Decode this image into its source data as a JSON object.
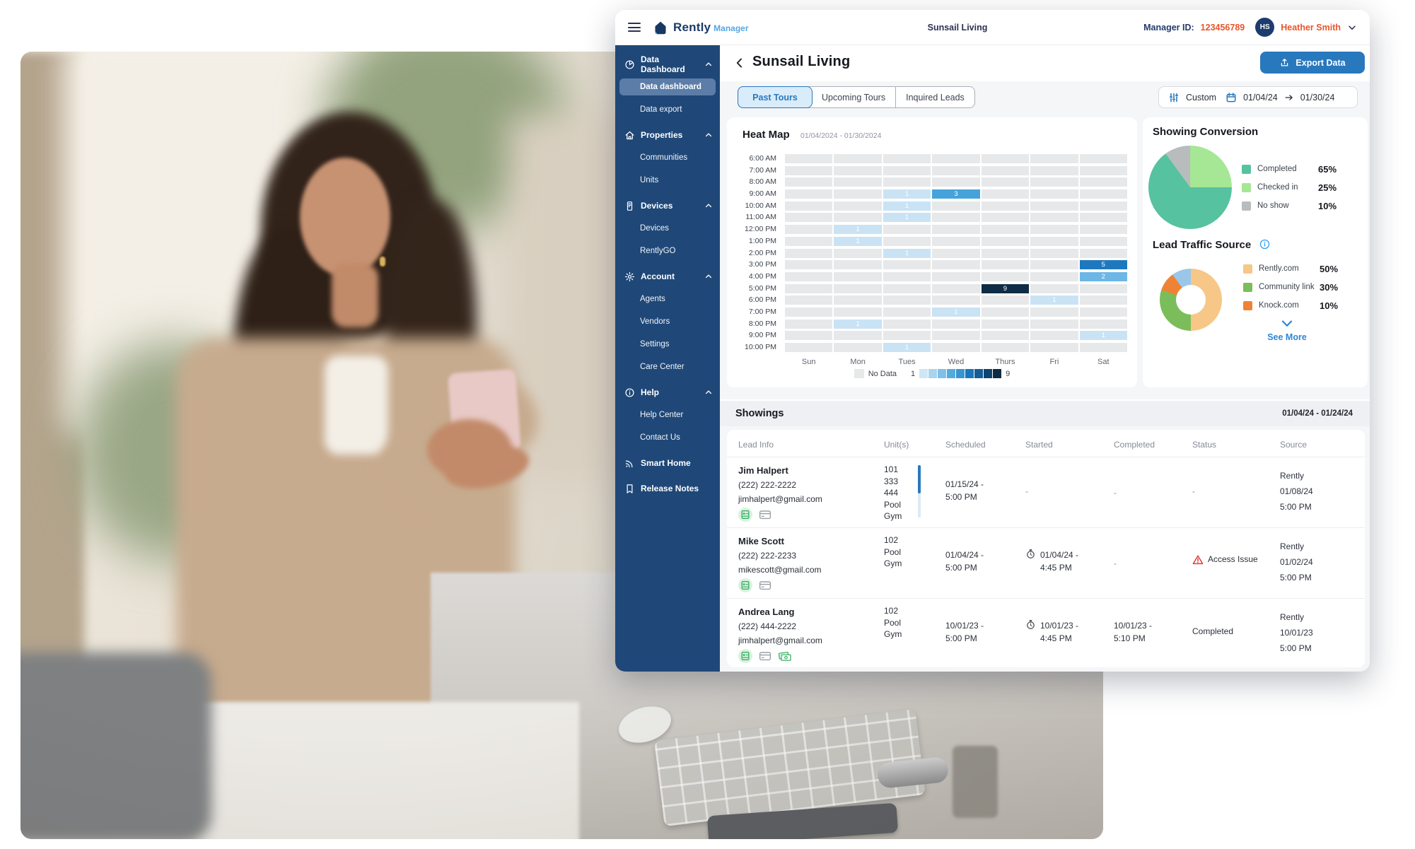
{
  "header": {
    "app_name": "Rently",
    "app_suffix": "Manager",
    "center_title": "Sunsail Living",
    "manager_id_label": "Manager ID:",
    "manager_id": "123456789",
    "avatar_initials": "HS",
    "user_name": "Heather Smith"
  },
  "sidebar": {
    "sections": [
      {
        "label": "Data Dashboard",
        "icon": "pie-chart-icon",
        "expanded": true,
        "children": [
          {
            "label": "Data dashboard",
            "active": true
          },
          {
            "label": "Data export",
            "active": false
          }
        ]
      },
      {
        "label": "Properties",
        "icon": "home-icon",
        "expanded": true,
        "children": [
          {
            "label": "Communities",
            "active": false
          },
          {
            "label": "Units",
            "active": false
          }
        ]
      },
      {
        "label": "Devices",
        "icon": "device-icon",
        "expanded": true,
        "children": [
          {
            "label": "Devices",
            "active": false
          },
          {
            "label": "RentlyGO",
            "active": false
          }
        ]
      },
      {
        "label": "Account",
        "icon": "gear-icon",
        "expanded": true,
        "children": [
          {
            "label": "Agents",
            "active": false
          },
          {
            "label": "Vendors",
            "active": false
          },
          {
            "label": "Settings",
            "active": false
          },
          {
            "label": "Care Center",
            "active": false
          }
        ]
      },
      {
        "label": "Help",
        "icon": "info-icon",
        "expanded": true,
        "children": [
          {
            "label": "Help Center",
            "active": false
          },
          {
            "label": "Contact Us",
            "active": false
          }
        ]
      },
      {
        "label": "Smart Home",
        "icon": "smart-home-icon",
        "expanded": false,
        "children": []
      },
      {
        "label": "Release Notes",
        "icon": "release-notes-icon",
        "expanded": false,
        "children": []
      }
    ]
  },
  "main": {
    "page_title": "Sunsail Living",
    "export_label": "Export Data",
    "tabs": [
      "Past Tours",
      "Upcoming Tours",
      "Inquired Leads"
    ],
    "active_tab": 0,
    "filter": {
      "mode_label": "Custom",
      "start": "01/04/24",
      "end": "01/30/24"
    }
  },
  "chart_data": [
    {
      "type": "heatmap",
      "title": "Heat Map",
      "date_range": "01/04/2024 - 01/30/2024",
      "times": [
        "6:00 AM",
        "7:00 AM",
        "8:00 AM",
        "9:00 AM",
        "10:00 AM",
        "11:00 AM",
        "12:00 PM",
        "1:00 PM",
        "2:00 PM",
        "3:00 PM",
        "4:00 PM",
        "5:00 PM",
        "6:00 PM",
        "7:00 PM",
        "8:00 PM",
        "9:00 PM",
        "10:00 PM"
      ],
      "days": [
        "Sun",
        "Mon",
        "Tues",
        "Wed",
        "Thurs",
        "Fri",
        "Sat"
      ],
      "cells": [
        {
          "time": "9:00 AM",
          "day": "Tues",
          "value": 1
        },
        {
          "time": "9:00 AM",
          "day": "Wed",
          "value": 3
        },
        {
          "time": "10:00 AM",
          "day": "Tues",
          "value": 1
        },
        {
          "time": "11:00 AM",
          "day": "Tues",
          "value": 1
        },
        {
          "time": "12:00 PM",
          "day": "Mon",
          "value": 1
        },
        {
          "time": "1:00 PM",
          "day": "Mon",
          "value": 1
        },
        {
          "time": "2:00 PM",
          "day": "Tues",
          "value": 1
        },
        {
          "time": "3:00 PM",
          "day": "Sat",
          "value": 5
        },
        {
          "time": "4:00 PM",
          "day": "Sat",
          "value": 2
        },
        {
          "time": "5:00 PM",
          "day": "Thurs",
          "value": 9
        },
        {
          "time": "6:00 PM",
          "day": "Fri",
          "value": 1
        },
        {
          "time": "7:00 PM",
          "day": "Wed",
          "value": 1
        },
        {
          "time": "8:00 PM",
          "day": "Mon",
          "value": 1
        },
        {
          "time": "9:00 PM",
          "day": "Sat",
          "value": 1
        },
        {
          "time": "10:00 PM",
          "day": "Tues",
          "value": 1
        }
      ],
      "value_colors": {
        "1": "#c9e3f5",
        "2": "#6db7e6",
        "3": "#46a2db",
        "5": "#1e78bd",
        "9": "#0e2c45"
      },
      "no_data_color": "#e7e8ea",
      "legend": {
        "no_data_label": "No Data",
        "min": "1",
        "max": "9",
        "scale": [
          "#cfe6f6",
          "#a9d4ee",
          "#7fc0e8",
          "#55aadd",
          "#3795d1",
          "#1b76bc",
          "#155d98",
          "#0f4471",
          "#0e2c45"
        ]
      }
    },
    {
      "type": "pie",
      "title": "Showing Conversion",
      "start_angle": 90,
      "draw_order": [
        0,
        2,
        1
      ],
      "slices": [
        {
          "label": "Completed",
          "pct": "65%",
          "value": 65,
          "color": "#57c2a0"
        },
        {
          "label": "Checked in",
          "pct": "25%",
          "value": 25,
          "color": "#a5e794"
        },
        {
          "label": "No show",
          "pct": "10%",
          "value": 10,
          "color": "#b8bcbd"
        }
      ]
    },
    {
      "type": "pie",
      "title": "Lead Traffic Source",
      "start_angle": 0,
      "draw_order": [
        0,
        1,
        2,
        3
      ],
      "donut": true,
      "see_more": "See More",
      "slices": [
        {
          "label": "Rently.com",
          "pct": "50%",
          "value": 50,
          "color": "#f6c786"
        },
        {
          "label": "Community link",
          "pct": "30%",
          "value": 30,
          "color": "#7bbd5b"
        },
        {
          "label": "Knock.com",
          "pct": "10%",
          "value": 10,
          "color": "#ef8335"
        },
        {
          "label": "",
          "pct": "",
          "value": 10,
          "color": "#9ac7e9"
        }
      ]
    }
  ],
  "showings": {
    "title": "Showings",
    "date_range": "01/04/24 - 01/24/24",
    "columns": [
      "Lead Info",
      "Unit(s)",
      "Scheduled",
      "Started",
      "Completed",
      "Status",
      "Source"
    ],
    "rows": [
      {
        "name": "Jim Halpert",
        "phone": "(222) 222-2222",
        "email": "jimhalpert@gmail.com",
        "badges": [
          "id-badge-icon",
          "card-icon"
        ],
        "units": [
          "101",
          "333",
          "444",
          "Pool",
          "Gym"
        ],
        "units_scrollbar": true,
        "scheduled": {
          "lines": [
            "01/15/24 -",
            "5:00 PM"
          ]
        },
        "started": {
          "text": "-"
        },
        "completed": {
          "text": "-"
        },
        "status": {
          "text": "-"
        },
        "source": {
          "lines": [
            "Rently",
            "01/08/24",
            "5:00 PM"
          ]
        }
      },
      {
        "name": "Mike Scott",
        "phone": "(222) 222-2233",
        "email": "mikescott@gmail.com",
        "badges": [
          "id-badge-icon",
          "card-icon"
        ],
        "units": [
          "102",
          "Pool",
          "Gym"
        ],
        "units_scrollbar": false,
        "scheduled": {
          "lines": [
            "01/04/24 -",
            "5:00 PM"
          ]
        },
        "started": {
          "icon": "watch-icon",
          "lines": [
            "01/04/24 -",
            "4:45 PM"
          ]
        },
        "completed": {
          "text": "-"
        },
        "status": {
          "icon": "warning-icon",
          "text": "Access Issue"
        },
        "source": {
          "lines": [
            "Rently",
            "01/02/24",
            "5:00 PM"
          ]
        }
      },
      {
        "name": "Andrea Lang",
        "phone": "(222) 444-2222",
        "email": "jimhalpert@gmail.com",
        "badges": [
          "id-badge-icon",
          "card-icon",
          "cash-icon"
        ],
        "units": [
          "102",
          "Pool",
          "Gym"
        ],
        "units_scrollbar": false,
        "scheduled": {
          "lines": [
            "10/01/23 -",
            "5:00 PM"
          ]
        },
        "started": {
          "icon": "watch-icon",
          "lines": [
            "10/01/23 -",
            "4:45 PM"
          ]
        },
        "completed": {
          "lines": [
            "10/01/23 -",
            "5:10 PM"
          ]
        },
        "status": {
          "text": "Completed"
        },
        "source": {
          "lines": [
            "Rently",
            "10/01/23",
            "5:00 PM"
          ]
        }
      }
    ]
  }
}
